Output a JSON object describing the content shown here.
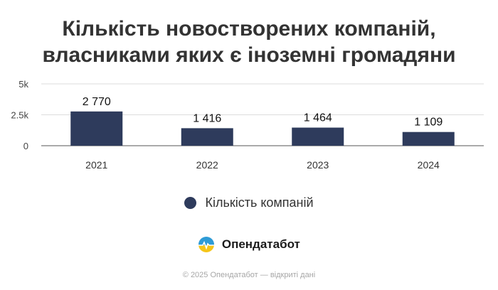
{
  "title_lines": [
    "Кількість новостворених компаній,",
    "власниками яких є іноземні громадяни"
  ],
  "chart_data": {
    "type": "bar",
    "categories": [
      "2021",
      "2022",
      "2023",
      "2024"
    ],
    "values": [
      2770,
      1416,
      1464,
      1109
    ],
    "value_labels": [
      "2 770",
      "1 416",
      "1 464",
      "1 109"
    ],
    "yticks": [
      0,
      2500,
      5000
    ],
    "ytick_labels": [
      "0",
      "2.5k",
      "5k"
    ],
    "ylim": [
      0,
      5000
    ],
    "grid": true,
    "legend": {
      "position": "bottom",
      "entries": [
        "Кількість компаній"
      ]
    },
    "bar_color": "#2e3b5c"
  },
  "brand": {
    "name": "Опендатабот",
    "logo_icon": "opendatabot-logo-icon",
    "colors": [
      "#2e9bd6",
      "#f5c518"
    ]
  },
  "footer": "© 2025 Опендатабот — відкриті дані"
}
